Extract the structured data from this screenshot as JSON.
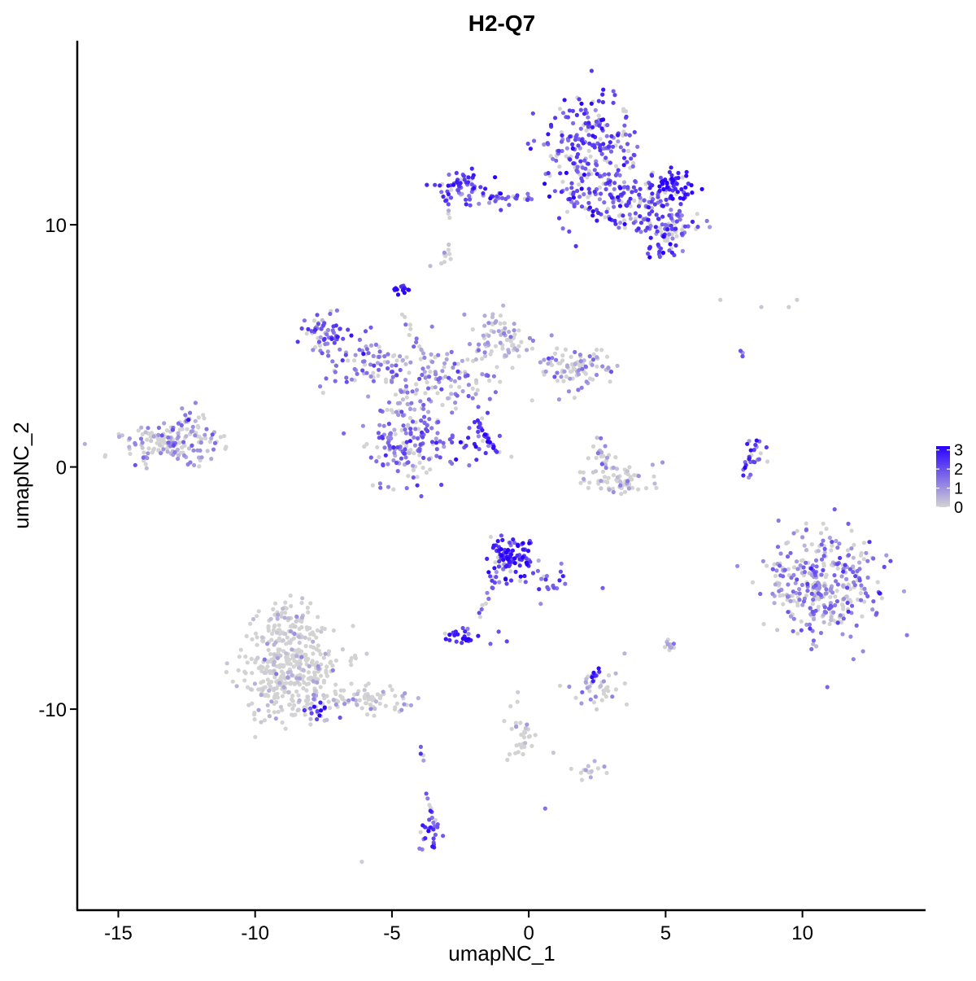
{
  "chart_data": {
    "type": "scatter",
    "title": "H2-Q7",
    "xlabel": "umapNC_1",
    "ylabel": "umapNC_2",
    "xlim": [
      -16.5,
      14.5
    ],
    "ylim": [
      -18.3,
      17.6
    ],
    "x_ticks": [
      -15,
      -10,
      -5,
      0,
      5,
      10
    ],
    "x_tick_labels": [
      "-15",
      "-10",
      "-5",
      "0",
      "5",
      "10"
    ],
    "y_ticks": [
      -10,
      0,
      10
    ],
    "y_tick_labels": [
      "-10",
      "0",
      "10"
    ],
    "grid": false,
    "legend_position": "right",
    "color_scale": {
      "low_color": "#d3d3d3",
      "high_color": "#2a00ff",
      "min": 0,
      "max": 3.2,
      "ticks": [
        0,
        1,
        2,
        3
      ],
      "tick_labels": [
        "0",
        "1",
        "2",
        "3"
      ]
    },
    "clusters": [
      {
        "cx": 2.3,
        "cy": 13.0,
        "sx": 0.9,
        "sy": 1.3,
        "n": 260,
        "expr": 2.0
      },
      {
        "cx": -2.5,
        "cy": 11.6,
        "sx": 0.5,
        "sy": 0.35,
        "n": 60,
        "expr": 2.3
      },
      {
        "cx": -0.9,
        "cy": 11.1,
        "sx": 0.6,
        "sy": 0.15,
        "n": 30,
        "expr": 2.0
      },
      {
        "cx": 3.8,
        "cy": 11.0,
        "sx": 0.8,
        "sy": 0.6,
        "n": 120,
        "expr": 2.0
      },
      {
        "cx": 5.2,
        "cy": 11.6,
        "sx": 0.4,
        "sy": 0.35,
        "n": 60,
        "expr": 2.8
      },
      {
        "cx": 5.2,
        "cy": 9.8,
        "sx": 0.6,
        "sy": 0.35,
        "n": 60,
        "expr": 1.8
      },
      {
        "cx": 4.7,
        "cy": 9.0,
        "sx": 0.3,
        "sy": 0.25,
        "n": 25,
        "expr": 2.2
      },
      {
        "cx": -3.0,
        "cy": 8.7,
        "sx": 0.12,
        "sy": 0.25,
        "n": 10,
        "expr": 0.5
      },
      {
        "cx": -4.7,
        "cy": 7.3,
        "sx": 0.15,
        "sy": 0.15,
        "n": 15,
        "expr": 2.8
      },
      {
        "cx": -7.5,
        "cy": 5.5,
        "sx": 0.45,
        "sy": 0.45,
        "n": 60,
        "expr": 1.7
      },
      {
        "cx": -5.8,
        "cy": 4.3,
        "sx": 0.8,
        "sy": 0.5,
        "n": 80,
        "expr": 1.6
      },
      {
        "cx": -3.2,
        "cy": 3.6,
        "sx": 1.0,
        "sy": 0.7,
        "n": 120,
        "expr": 1.2
      },
      {
        "cx": -1.0,
        "cy": 5.2,
        "sx": 0.6,
        "sy": 0.6,
        "n": 80,
        "expr": 0.6
      },
      {
        "cx": 1.7,
        "cy": 4.0,
        "sx": 0.8,
        "sy": 0.45,
        "n": 90,
        "expr": 1.0
      },
      {
        "cx": -4.3,
        "cy": 1.0,
        "sx": 0.8,
        "sy": 0.8,
        "n": 170,
        "expr": 1.5
      },
      {
        "cx": -2.0,
        "cy": 1.2,
        "sx": 0.5,
        "sy": 0.4,
        "n": 25,
        "expr": 2.3
      },
      {
        "cx": -13.2,
        "cy": 1.0,
        "sx": 0.9,
        "sy": 0.4,
        "n": 150,
        "expr": 0.8
      },
      {
        "cx": -12.2,
        "cy": 1.8,
        "sx": 0.5,
        "sy": 0.4,
        "n": 30,
        "expr": 1.2
      },
      {
        "cx": 3.2,
        "cy": -0.6,
        "sx": 0.7,
        "sy": 0.25,
        "n": 70,
        "expr": 0.2
      },
      {
        "cx": 2.8,
        "cy": 0.5,
        "sx": 0.3,
        "sy": 0.4,
        "n": 25,
        "expr": 0.8
      },
      {
        "cx": 8.2,
        "cy": 0.4,
        "sx": 0.2,
        "sy": 0.5,
        "n": 15,
        "expr": 2.0
      },
      {
        "cx": 10.8,
        "cy": -4.8,
        "sx": 1.0,
        "sy": 1.2,
        "n": 340,
        "expr": 1.2
      },
      {
        "cx": 9.2,
        "cy": -4.8,
        "sx": 0.25,
        "sy": 0.3,
        "n": 15,
        "expr": 1.0
      },
      {
        "cx": -0.6,
        "cy": -3.8,
        "sx": 0.4,
        "sy": 0.45,
        "n": 110,
        "expr": 2.5
      },
      {
        "cx": 0.8,
        "cy": -4.8,
        "sx": 0.4,
        "sy": 0.3,
        "n": 20,
        "expr": 1.8
      },
      {
        "cx": -2.5,
        "cy": -7.0,
        "sx": 0.3,
        "sy": 0.15,
        "n": 25,
        "expr": 2.7
      },
      {
        "cx": -8.6,
        "cy": -8.4,
        "sx": 0.9,
        "sy": 1.0,
        "n": 400,
        "expr": 0.05
      },
      {
        "cx": -8.8,
        "cy": -6.5,
        "sx": 0.5,
        "sy": 0.5,
        "n": 60,
        "expr": 0.1
      },
      {
        "cx": -5.9,
        "cy": -9.6,
        "sx": 0.9,
        "sy": 0.3,
        "n": 70,
        "expr": 0.2
      },
      {
        "cx": -7.8,
        "cy": -10.0,
        "sx": 0.25,
        "sy": 0.2,
        "n": 15,
        "expr": 2.5
      },
      {
        "cx": 2.5,
        "cy": -9.2,
        "sx": 0.4,
        "sy": 0.35,
        "n": 40,
        "expr": 0.8
      },
      {
        "cx": 2.5,
        "cy": -8.6,
        "sx": 0.15,
        "sy": 0.15,
        "n": 10,
        "expr": 2.6
      },
      {
        "cx": 5.1,
        "cy": -7.3,
        "sx": 0.1,
        "sy": 0.15,
        "n": 10,
        "expr": 0.6
      },
      {
        "cx": -0.3,
        "cy": -10.8,
        "sx": 0.25,
        "sy": 0.6,
        "n": 25,
        "expr": 0.2
      },
      {
        "cx": 2.2,
        "cy": -12.5,
        "sx": 0.3,
        "sy": 0.15,
        "n": 15,
        "expr": 0.3
      },
      {
        "cx": -3.5,
        "cy": -15.2,
        "sx": 0.2,
        "sy": 0.3,
        "n": 25,
        "expr": 2.0
      },
      {
        "cx": -3.6,
        "cy": -14.0,
        "sx": 0.08,
        "sy": 0.25,
        "n": 8,
        "expr": 2.0
      }
    ],
    "segments": [
      {
        "from": [
          -1.9,
          1.9
        ],
        "to": [
          -1.2,
          0.6
        ],
        "n": 25,
        "expr": 2.5
      },
      {
        "from": [
          -4.6,
          6.3
        ],
        "to": [
          -3.8,
          4.5
        ],
        "n": 12,
        "expr": 1.5
      },
      {
        "from": [
          -1.8,
          -6.2
        ],
        "to": [
          -1.0,
          -4.2
        ],
        "n": 14,
        "expr": 2.0
      },
      {
        "from": [
          7.8,
          -0.1
        ],
        "to": [
          8.4,
          1.1
        ],
        "n": 14,
        "expr": 2.4
      },
      {
        "from": [
          -3.9,
          -12.1
        ],
        "to": [
          -3.9,
          -11.6
        ],
        "n": 4,
        "expr": 2.0
      },
      {
        "from": [
          7.7,
          4.9
        ],
        "to": [
          7.8,
          4.6
        ],
        "n": 3,
        "expr": 1.5
      },
      {
        "from": [
          1.4,
          11.0
        ],
        "to": [
          3.2,
          10.2
        ],
        "n": 15,
        "expr": 2.2
      },
      {
        "from": [
          -2.9,
          10.6
        ],
        "to": [
          -2.9,
          10.3
        ],
        "n": 3,
        "expr": 0.5
      },
      {
        "from": [
          -0.8,
          -12.0
        ],
        "to": [
          -0.2,
          -11.5
        ],
        "n": 6,
        "expr": 0.2
      }
    ],
    "singles": [
      [
        7.0,
        6.9,
        0.1
      ],
      [
        8.5,
        6.6,
        0.2
      ],
      [
        9.5,
        6.6,
        0.1
      ],
      [
        9.8,
        6.9,
        0.1
      ],
      [
        -6.1,
        -16.3,
        0.1
      ],
      [
        0.6,
        -14.1,
        1.5
      ],
      [
        2.7,
        -5.0,
        1.8
      ],
      [
        3.5,
        -7.7,
        0.5
      ],
      [
        -1.1,
        -6.8,
        2.0
      ],
      [
        -0.8,
        -7.2,
        2.2
      ],
      [
        -1.4,
        -7.3,
        1.8
      ],
      [
        0.9,
        -11.8,
        0.2
      ],
      [
        -0.4,
        -9.3,
        0.1
      ],
      [
        -8.4,
        -9.7,
        0.2
      ],
      [
        -3.6,
        8.3,
        0.4
      ]
    ]
  }
}
